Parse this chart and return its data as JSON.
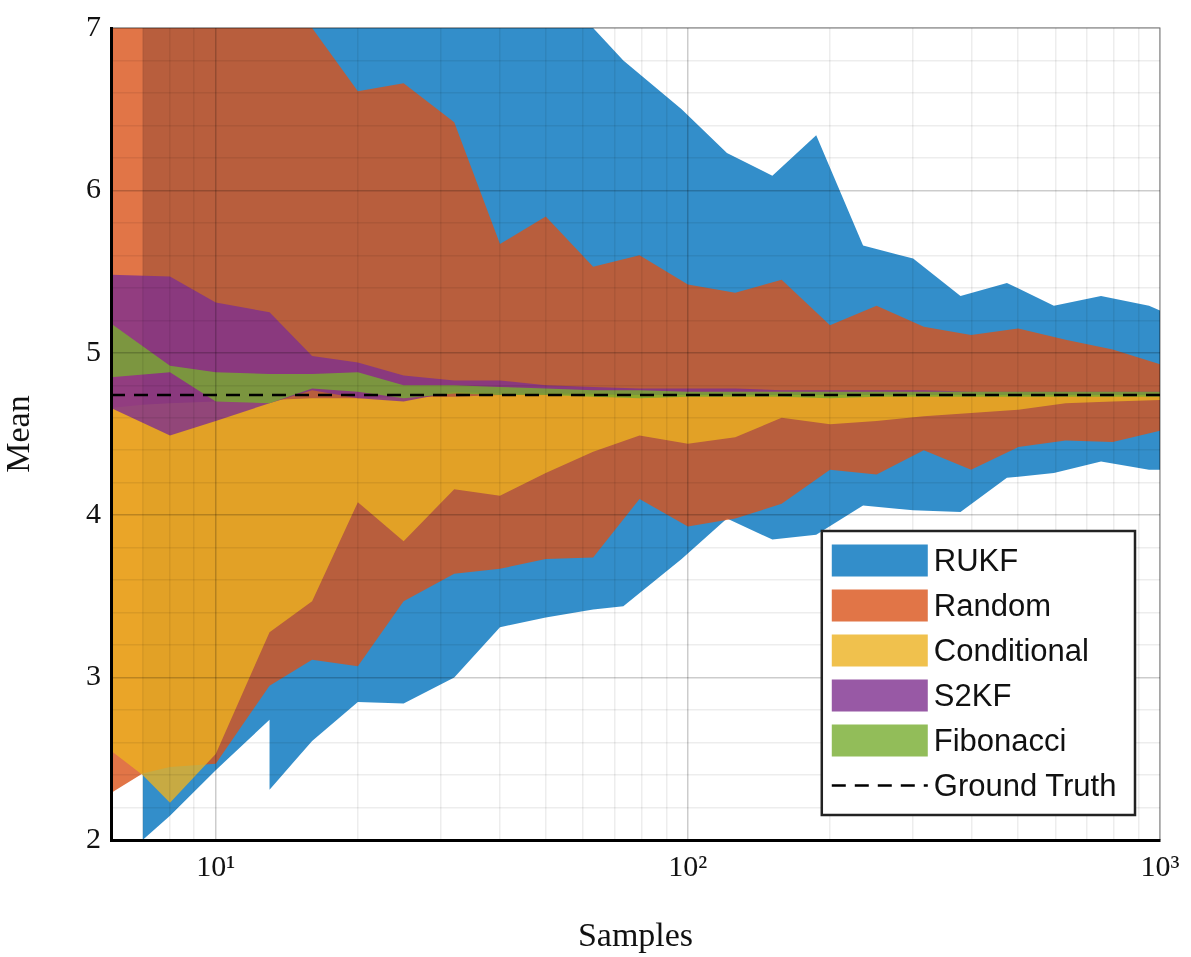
{
  "chart_data": {
    "type": "area",
    "xlabel": "Samples",
    "ylabel": "Mean",
    "log": "x",
    "grid": true,
    "legend": "bottom right",
    "xlim": [
      6,
      1000
    ],
    "ylim": [
      2,
      7
    ],
    "xticks": [
      {
        "value": 6,
        "label": null
      },
      {
        "value": 7,
        "label": null
      },
      {
        "value": 8,
        "label": null
      },
      {
        "value": 9,
        "label": null
      },
      {
        "value": 10,
        "label": "10¹"
      },
      {
        "value": 20,
        "label": null
      },
      {
        "value": 30,
        "label": null
      },
      {
        "value": 40,
        "label": null
      },
      {
        "value": 50,
        "label": null
      },
      {
        "value": 60,
        "label": null
      },
      {
        "value": 70,
        "label": null
      },
      {
        "value": 80,
        "label": null
      },
      {
        "value": 90,
        "label": null
      },
      {
        "value": 100,
        "label": "10²"
      },
      {
        "value": 200,
        "label": null
      },
      {
        "value": 300,
        "label": null
      },
      {
        "value": 400,
        "label": null
      },
      {
        "value": 500,
        "label": null
      },
      {
        "value": 600,
        "label": null
      },
      {
        "value": 700,
        "label": null
      },
      {
        "value": 800,
        "label": null
      },
      {
        "value": 900,
        "label": null
      },
      {
        "value": 1000,
        "label": "10³"
      }
    ],
    "yticks": [
      2,
      {
        "value": 2.2,
        "label": null
      },
      {
        "value": 2.4,
        "label": null
      },
      {
        "value": 2.6,
        "label": null
      },
      {
        "value": 2.8,
        "label": null
      },
      3,
      {
        "value": 3.2,
        "label": null
      },
      {
        "value": 3.4,
        "label": null
      },
      {
        "value": 3.6,
        "label": null
      },
      {
        "value": 3.8,
        "label": null
      },
      4,
      {
        "value": 4.2,
        "label": null
      },
      {
        "value": 4.4,
        "label": null
      },
      {
        "value": 4.6,
        "label": null
      },
      {
        "value": 4.8,
        "label": null
      },
      5,
      {
        "value": 5.2,
        "label": null
      },
      {
        "value": 5.4,
        "label": null
      },
      {
        "value": 5.6,
        "label": null
      },
      {
        "value": 5.8,
        "label": null
      },
      6,
      {
        "value": 6.2,
        "label": null
      },
      {
        "value": 6.4,
        "label": null
      },
      {
        "value": 6.6,
        "label": null
      },
      {
        "value": 6.8,
        "label": null
      },
      7
    ],
    "series": [
      {
        "name": "RUKF",
        "color": "#338eca",
        "x": [
          7,
          8,
          10,
          13,
          13,
          16,
          20,
          25,
          32,
          40,
          50,
          63,
          73,
          97,
          121,
          151,
          187,
          235,
          300,
          378,
          474,
          596,
          750,
          948,
          1000
        ],
        "values": [
          null,
          null,
          null,
          null,
          null,
          null,
          null,
          null,
          null,
          null,
          null,
          null,
          null,
          null,
          null,
          null,
          null,
          null,
          null,
          null,
          null,
          null,
          null,
          null,
          null
        ],
        "lower": [
          2.0,
          2.15,
          2.43,
          2.74,
          2.31,
          2.61,
          2.85,
          2.84,
          3.0,
          3.31,
          3.37,
          3.42,
          3.44,
          3.73,
          3.98,
          3.85,
          3.88,
          4.06,
          4.03,
          4.02,
          4.23,
          4.26,
          4.33,
          4.28,
          4.28
        ],
        "upper": [
          7,
          7,
          7,
          7,
          7,
          7,
          7,
          7,
          7,
          7,
          7,
          7,
          6.8,
          6.5,
          6.23,
          6.09,
          6.34,
          5.66,
          5.58,
          5.35,
          5.43,
          5.29,
          5.35,
          5.29,
          5.26
        ]
      },
      {
        "name": "Random",
        "color": "#e17547",
        "x": [
          6,
          7,
          8,
          10,
          13,
          16,
          20,
          25,
          32,
          40,
          50,
          63,
          79,
          100,
          126,
          158,
          200,
          251,
          316,
          398,
          501,
          631,
          794,
          1000
        ],
        "values": [
          null,
          null,
          null,
          null,
          null,
          null,
          null,
          null,
          null,
          null,
          null,
          null,
          null,
          null,
          null,
          null,
          null,
          null,
          null,
          null,
          null,
          null,
          null,
          null
        ],
        "lower": [
          2.29,
          2.41,
          2.45,
          2.47,
          2.95,
          3.11,
          3.07,
          3.47,
          3.64,
          3.67,
          3.73,
          3.74,
          4.1,
          3.93,
          3.98,
          4.07,
          4.28,
          4.25,
          4.4,
          4.28,
          4.42,
          4.46,
          4.45,
          4.52
        ],
        "upper": [
          7,
          7,
          7,
          7,
          7,
          7,
          6.61,
          6.66,
          6.42,
          5.67,
          5.84,
          5.53,
          5.6,
          5.42,
          5.37,
          5.45,
          5.17,
          5.29,
          5.16,
          5.11,
          5.15,
          5.08,
          5.02,
          4.93
        ]
      },
      {
        "name": "Conditional",
        "color": "#f0c14d",
        "x": [
          6,
          7,
          8,
          10,
          13,
          16,
          20,
          25,
          32,
          40,
          50,
          63,
          79,
          100,
          126,
          158,
          200,
          251,
          316,
          398,
          501,
          631,
          794,
          1000
        ],
        "values": [
          null,
          null,
          null,
          null,
          null,
          null,
          null,
          null,
          null,
          null,
          null,
          null,
          null,
          null,
          null,
          null,
          null,
          null,
          null,
          null,
          null,
          null,
          null,
          null
        ],
        "lower": [
          2.55,
          2.4,
          2.23,
          2.53,
          3.28,
          3.47,
          4.08,
          3.84,
          4.16,
          4.12,
          4.26,
          4.39,
          4.49,
          4.44,
          4.48,
          4.6,
          4.56,
          4.58,
          4.61,
          4.63,
          4.65,
          4.69,
          4.7,
          4.71
        ],
        "upper": [
          4.66,
          4.68,
          4.69,
          4.7,
          4.71,
          4.72,
          4.72,
          4.73,
          4.73,
          4.74,
          4.74,
          4.74,
          4.74,
          4.74,
          4.74,
          4.74,
          4.74,
          4.74,
          4.74,
          4.74,
          4.74,
          4.74,
          4.74,
          4.74
        ]
      },
      {
        "name": "S2KF",
        "color": "#9859a5",
        "x": [
          6,
          8,
          10,
          13,
          16,
          20,
          25,
          32,
          40,
          50,
          63,
          79,
          100,
          126,
          158,
          200,
          251,
          316,
          398,
          501,
          631,
          794,
          1000
        ],
        "values": [
          null,
          null,
          null,
          null,
          null,
          null,
          null,
          null,
          null,
          null,
          null,
          null,
          null,
          null,
          null,
          null,
          null,
          null,
          null,
          null,
          null,
          null,
          null
        ],
        "lower": [
          4.66,
          4.49,
          4.58,
          4.69,
          4.77,
          4.72,
          4.7,
          4.76,
          4.75,
          4.75,
          4.75,
          4.74,
          4.74,
          4.74,
          4.74,
          4.74,
          4.74,
          4.74,
          4.74,
          4.74,
          4.74,
          4.74,
          4.74
        ],
        "upper": [
          5.48,
          5.47,
          5.31,
          5.25,
          4.98,
          4.94,
          4.86,
          4.83,
          4.83,
          4.8,
          4.79,
          4.78,
          4.78,
          4.78,
          4.77,
          4.77,
          4.77,
          4.77,
          4.76,
          4.76,
          4.76,
          4.76,
          4.76
        ]
      },
      {
        "name": "Fibonacci",
        "color": "#92bd59",
        "x": [
          6,
          8,
          10,
          13,
          16,
          20,
          25,
          32,
          40,
          50,
          63,
          79,
          100,
          126,
          158,
          200,
          251,
          316,
          398,
          501,
          631,
          794,
          1000
        ],
        "values": [
          null,
          null,
          null,
          null,
          null,
          null,
          null,
          null,
          null,
          null,
          null,
          null,
          null,
          null,
          null,
          null,
          null,
          null,
          null,
          null,
          null,
          null,
          null
        ],
        "lower": [
          4.85,
          4.88,
          4.7,
          4.69,
          4.78,
          4.76,
          4.72,
          4.75,
          4.74,
          4.74,
          4.73,
          4.72,
          4.73,
          4.73,
          4.73,
          4.72,
          4.73,
          4.73,
          4.73,
          4.73,
          4.73,
          4.73,
          4.73
        ],
        "upper": [
          5.18,
          4.92,
          4.88,
          4.87,
          4.87,
          4.88,
          4.8,
          4.8,
          4.79,
          4.78,
          4.77,
          4.77,
          4.76,
          4.76,
          4.76,
          4.76,
          4.76,
          4.76,
          4.76,
          4.76,
          4.76,
          4.76,
          4.76
        ]
      }
    ],
    "ref_lines": [
      {
        "axis": "y",
        "value": 4.74,
        "label": "Ground Truth",
        "color": "#000000",
        "line_style": "dashed"
      }
    ]
  }
}
